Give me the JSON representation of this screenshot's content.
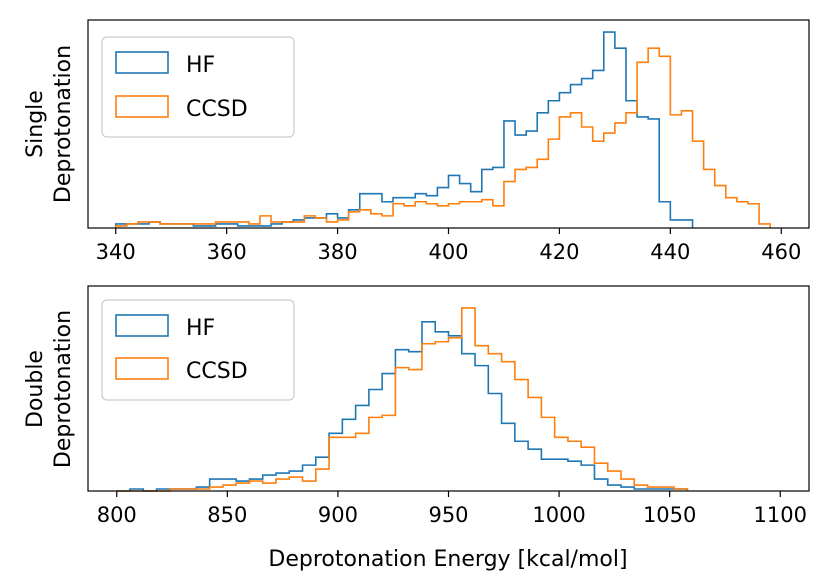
{
  "colors": {
    "hf": "#1f77b4",
    "ccsd": "#ff7f0e"
  },
  "chart_data": [
    {
      "type": "histogram-step",
      "ylabel_lines": [
        "Single",
        "Deprotonation"
      ],
      "xlabel": "",
      "xlim": [
        335,
        465
      ],
      "xticks": [
        340,
        360,
        380,
        400,
        420,
        440,
        460
      ],
      "ymax": 100,
      "legend": {
        "position": "upper-left",
        "entries": [
          "HF",
          "CCSD"
        ]
      },
      "series": [
        {
          "name": "HF",
          "color": "#1f77b4",
          "edges": [
            340,
            342,
            344,
            346,
            348,
            350,
            352,
            354,
            356,
            358,
            360,
            362,
            364,
            366,
            368,
            370,
            372,
            374,
            376,
            378,
            380,
            382,
            384,
            386,
            388,
            390,
            392,
            394,
            396,
            398,
            400,
            402,
            404,
            406,
            408,
            410,
            412,
            414,
            416,
            418,
            420,
            422,
            424,
            426,
            428,
            430,
            432,
            434,
            436,
            438,
            440,
            442,
            444
          ],
          "counts": [
            2,
            2,
            2,
            3,
            2,
            2,
            2,
            1,
            1,
            2,
            2,
            1,
            1,
            1,
            2,
            3,
            4,
            5,
            5,
            7,
            5,
            9,
            17,
            17,
            13,
            15,
            15,
            17,
            16,
            20,
            26,
            22,
            18,
            29,
            30,
            53,
            46,
            48,
            57,
            63,
            67,
            71,
            74,
            78,
            97,
            89,
            63,
            55,
            54,
            13,
            4,
            4
          ]
        },
        {
          "name": "CCSD",
          "color": "#ff7f0e",
          "edges": [
            340,
            342,
            344,
            346,
            348,
            350,
            352,
            354,
            356,
            358,
            360,
            362,
            364,
            366,
            368,
            370,
            372,
            374,
            376,
            378,
            380,
            382,
            384,
            386,
            388,
            390,
            392,
            394,
            396,
            398,
            400,
            402,
            404,
            406,
            408,
            410,
            412,
            414,
            416,
            418,
            420,
            422,
            424,
            426,
            428,
            430,
            432,
            434,
            436,
            438,
            440,
            442,
            444,
            446,
            448,
            450,
            452,
            454,
            456,
            458
          ],
          "counts": [
            1,
            2,
            3,
            3,
            2,
            2,
            2,
            2,
            2,
            3,
            3,
            3,
            2,
            6,
            3,
            3,
            3,
            6,
            5,
            3,
            4,
            8,
            9,
            7,
            6,
            12,
            11,
            13,
            12,
            11,
            12,
            13,
            13,
            14,
            11,
            23,
            29,
            30,
            34,
            44,
            55,
            57,
            50,
            43,
            47,
            52,
            57,
            82,
            89,
            85,
            56,
            58,
            43,
            29,
            21,
            15,
            13,
            12,
            2
          ],
          "counts_note": ""
        }
      ]
    },
    {
      "type": "histogram-step",
      "ylabel_lines": [
        "Double",
        "Deprotonation"
      ],
      "xlabel": "Deprotonation Energy [kcal/mol]",
      "xlim": [
        787,
        1113
      ],
      "xticks": [
        800,
        850,
        900,
        950,
        1000,
        1050,
        1100
      ],
      "ymax": 100,
      "legend": {
        "position": "upper-left",
        "entries": [
          "HF",
          "CCSD"
        ]
      },
      "series": [
        {
          "name": "HF",
          "color": "#1f77b4",
          "edges": [
            800,
            806,
            812,
            818,
            824,
            830,
            836,
            842,
            848,
            854,
            860,
            866,
            872,
            878,
            884,
            890,
            896,
            902,
            908,
            914,
            920,
            926,
            932,
            938,
            944,
            950,
            956,
            962,
            968,
            974,
            980,
            986,
            992,
            998,
            1004,
            1010,
            1016,
            1022,
            1028,
            1034,
            1040,
            1046,
            1052,
            1058
          ],
          "counts": [
            0,
            1,
            0,
            1,
            1,
            1,
            2,
            6,
            6,
            5,
            6,
            8,
            9,
            10,
            13,
            17,
            29,
            36,
            43,
            51,
            59,
            71,
            70,
            85,
            80,
            78,
            69,
            63,
            49,
            34,
            25,
            21,
            16,
            16,
            15,
            13,
            6,
            3,
            2,
            1,
            1,
            1,
            1
          ]
        },
        {
          "name": "CCSD",
          "color": "#ff7f0e",
          "edges": [
            800,
            806,
            812,
            818,
            824,
            830,
            836,
            842,
            848,
            854,
            860,
            866,
            872,
            878,
            884,
            890,
            896,
            902,
            908,
            914,
            920,
            926,
            932,
            938,
            944,
            950,
            956,
            962,
            968,
            974,
            980,
            986,
            992,
            998,
            1004,
            1010,
            1016,
            1022,
            1028,
            1034,
            1040,
            1046,
            1052,
            1058
          ],
          "counts": [
            0,
            0,
            0,
            0,
            1,
            1,
            1,
            2,
            3,
            4,
            5,
            4,
            6,
            7,
            5,
            11,
            27,
            27,
            29,
            37,
            38,
            62,
            61,
            74,
            75,
            77,
            92,
            73,
            69,
            65,
            56,
            47,
            37,
            27,
            25,
            22,
            14,
            10,
            6,
            3,
            2,
            2,
            1
          ]
        }
      ]
    }
  ]
}
